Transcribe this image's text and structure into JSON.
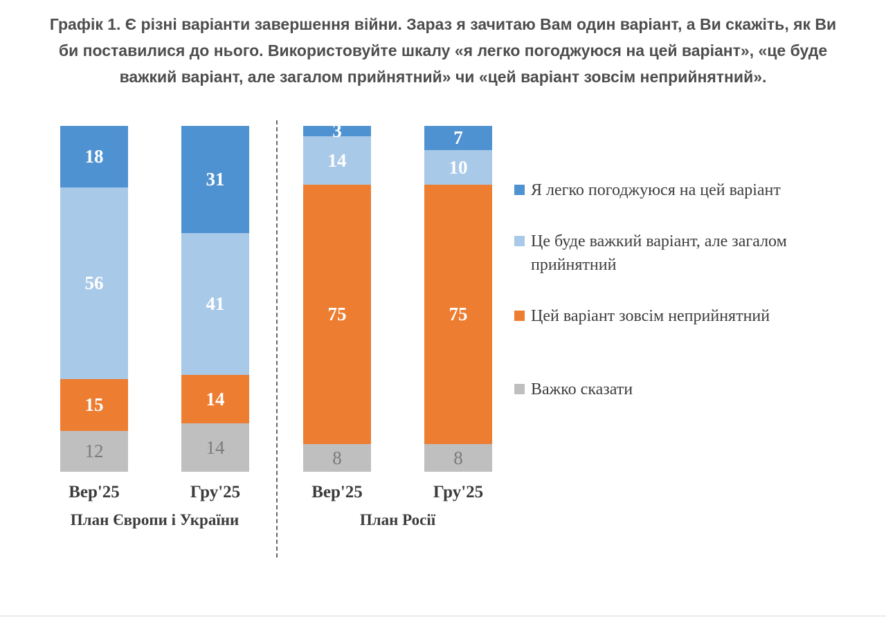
{
  "title": "Графік 1. Є різні варіанти завершення війни. Зараз я зачитаю Вам один варіант, а Ви скажіть, як Ви би поставилися до нього. Використовуйте шкалу «я легко погоджуюся на цей варіант», «це буде важкий варіант, але загалом прийнятний» чи «цей варіант зовсім неприйнятний».",
  "chart_data": {
    "type": "bar",
    "variant": "100-percent-stacked-column",
    "value_unit": "percent",
    "ylim": [
      0,
      100
    ],
    "grid": false,
    "legend_position": "right",
    "divider": "dashed vertical line between the two groups",
    "categories": [
      "Вер'25",
      "Гру'25",
      "Вер'25",
      "Гру'25"
    ],
    "groups": [
      {
        "label": "План Європи і України",
        "category_indexes": [
          0,
          1
        ]
      },
      {
        "label": "План Росії",
        "category_indexes": [
          2,
          3
        ]
      }
    ],
    "series": [
      {
        "name": "Я легко погоджуюся на цей варіант",
        "color": "#4F92D1",
        "label_color": "#ffffff",
        "label_bold": true,
        "values": [
          18,
          31,
          3,
          7
        ]
      },
      {
        "name": "Це буде важкий варіант, але загалом прийнятний",
        "color": "#A9C9E9",
        "label_color": "#ffffff",
        "label_bold": true,
        "values": [
          56,
          41,
          14,
          10
        ]
      },
      {
        "name": "Цей варіант зовсім неприйнятний",
        "color": "#ED7D31",
        "label_color": "#ffffff",
        "label_bold": true,
        "values": [
          15,
          14,
          75,
          75
        ]
      },
      {
        "name": "Важко сказати",
        "color": "#BFBFBF",
        "label_color": "#7b7b7b",
        "label_bold": false,
        "values": [
          12,
          14,
          8,
          8
        ]
      }
    ]
  }
}
